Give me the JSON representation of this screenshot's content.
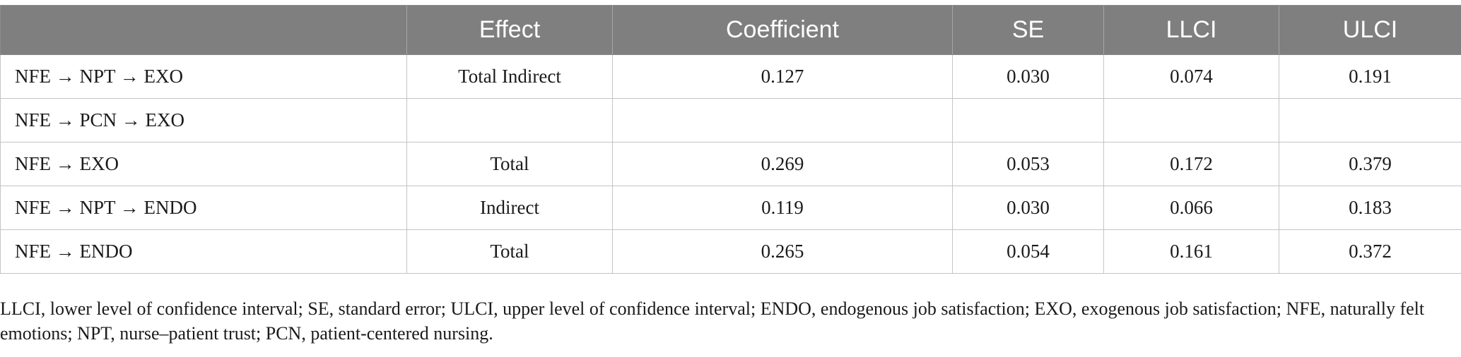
{
  "table": {
    "headers": [
      "",
      "Effect",
      "Coefficient",
      "SE",
      "LLCI",
      "ULCI"
    ],
    "rows": [
      {
        "path": "NFE → NPT → EXO",
        "effect": "Total Indirect",
        "coefficient": "0.127",
        "se": "0.030",
        "llci": "0.074",
        "ulci": "0.191"
      },
      {
        "path": "NFE → PCN → EXO",
        "effect": "",
        "coefficient": "",
        "se": "",
        "llci": "",
        "ulci": ""
      },
      {
        "path": "NFE → EXO",
        "effect": "Total",
        "coefficient": "0.269",
        "se": "0.053",
        "llci": "0.172",
        "ulci": "0.379"
      },
      {
        "path": "NFE → NPT → ENDO",
        "effect": "Indirect",
        "coefficient": "0.119",
        "se": "0.030",
        "llci": "0.066",
        "ulci": "0.183"
      },
      {
        "path": "NFE → ENDO",
        "effect": "Total",
        "coefficient": "0.265",
        "se": "0.054",
        "llci": "0.161",
        "ulci": "0.372"
      }
    ]
  },
  "footnote": "LLCI, lower level of confidence interval; SE, standard error; ULCI, upper level of confidence interval; ENDO, endogenous job satisfaction; EXO, exogenous job satisfaction; NFE, naturally felt emotions; NPT, nurse–patient trust; PCN, patient-centered nursing."
}
